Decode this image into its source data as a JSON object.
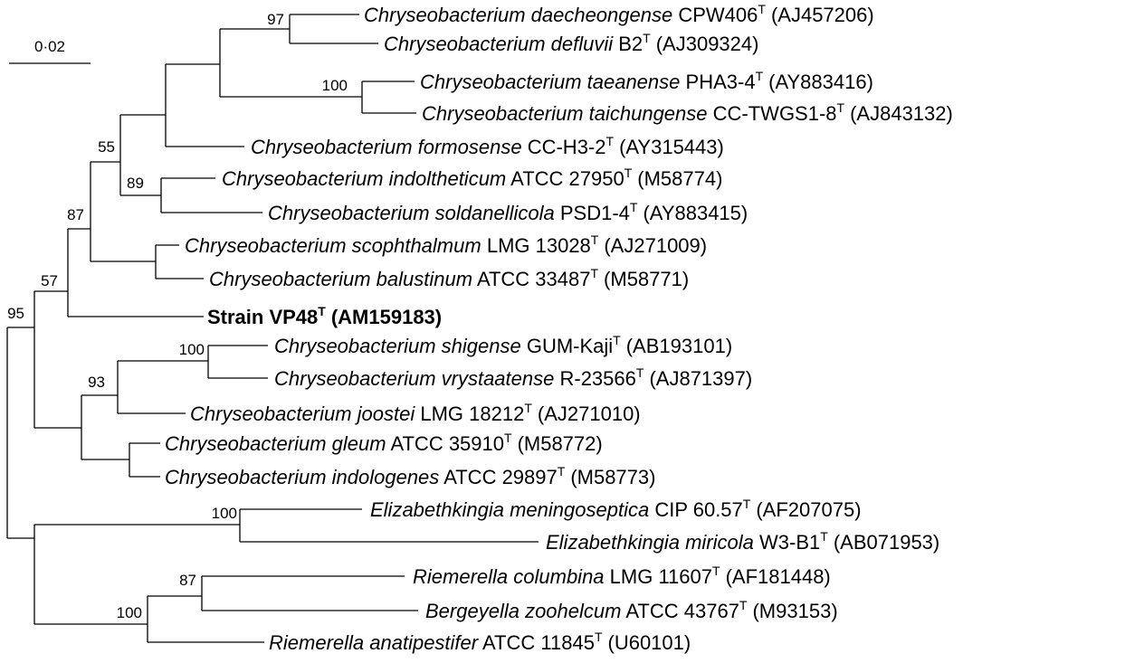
{
  "scale_bar": {
    "label": "0·02",
    "value": 0.02
  },
  "bootstrap": {
    "b97": "97",
    "b100a": "100",
    "b55": "55",
    "b89": "89",
    "b87a": "87",
    "b57": "57",
    "b95": "95",
    "b100b": "100",
    "b93": "93",
    "b100c": "100",
    "b87b": "87",
    "b100d": "100"
  },
  "taxa": [
    {
      "genus_species": "Chryseobacterium daecheongense",
      "strain": "CPW406",
      "type": "T",
      "accession": "(AJ457206)"
    },
    {
      "genus_species": "Chryseobacterium defluvii",
      "strain": "B2",
      "type": "T",
      "accession": "(AJ309324)"
    },
    {
      "genus_species": "Chryseobacterium taeanense",
      "strain": "PHA3-4",
      "type": "T",
      "accession": "(AY883416)"
    },
    {
      "genus_species": "Chryseobacterium taichungense",
      "strain": "CC-TWGS1-8",
      "type": "T",
      "accession": "(AJ843132)"
    },
    {
      "genus_species": "Chryseobacterium formosense",
      "strain": "CC-H3-2",
      "type": "T",
      "accession": "(AY315443)"
    },
    {
      "genus_species": "Chryseobacterium indoltheticum",
      "strain": "ATCC 27950",
      "type": "T",
      "accession": "(M58774)"
    },
    {
      "genus_species": "Chryseobacterium soldanellicola",
      "strain": "PSD1-4",
      "type": "T",
      "accession": "(AY883415)"
    },
    {
      "genus_species": "Chryseobacterium scophthalmum",
      "strain": "LMG 13028",
      "type": "T",
      "accession": "(AJ271009)"
    },
    {
      "genus_species": "Chryseobacterium balustinum",
      "strain": "ATCC 33487",
      "type": "T",
      "accession": "(M58771)"
    },
    {
      "genus_species": "",
      "strain": "Strain VP48",
      "type": "T",
      "accession": "(AM159183)",
      "bold": true
    },
    {
      "genus_species": "Chryseobacterium shigense",
      "strain": "GUM-Kaji",
      "type": "T",
      "accession": "(AB193101)"
    },
    {
      "genus_species": "Chryseobacterium vrystaatense",
      "strain": "R-23566",
      "type": "T",
      "accession": "(AJ871397)"
    },
    {
      "genus_species": "Chryseobacterium joostei",
      "strain": "LMG 18212",
      "type": "T",
      "accession": "(AJ271010)"
    },
    {
      "genus_species": "Chryseobacterium gleum",
      "strain": "ATCC 35910",
      "type": "T",
      "accession": "(M58772)"
    },
    {
      "genus_species": "Chryseobacterium indologenes",
      "strain": "ATCC 29897",
      "type": "T",
      "accession": "(M58773)"
    },
    {
      "genus_species": "Elizabethkingia meningoseptica",
      "strain": "CIP 60.57",
      "type": "T",
      "accession": "(AF207075)"
    },
    {
      "genus_species": "Elizabethkingia miricola",
      "strain": "W3-B1",
      "type": "T",
      "accession": "(AB071953)"
    },
    {
      "genus_species": "Riemerella columbina",
      "strain": "LMG 11607",
      "type": "T",
      "accession": "(AF181448)"
    },
    {
      "genus_species": "Bergeyella zoohelcum",
      "strain": "ATCC 43767",
      "type": "T",
      "accession": "(M93153)"
    },
    {
      "genus_species": "Riemerella anatipestifer",
      "strain": "ATCC 11845",
      "type": "T",
      "accession": "(U60101)"
    }
  ]
}
